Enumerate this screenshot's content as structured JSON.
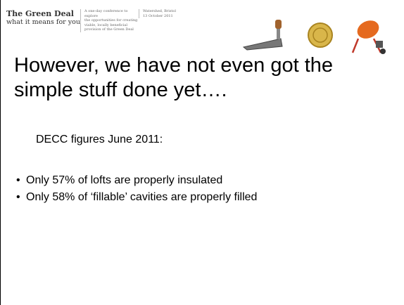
{
  "header": {
    "title": "The Green Deal",
    "tagline": "what it means for you",
    "description": [
      "A one-day conference to explore",
      "the opportunities for creating",
      "viable, locally beneficial",
      "provision of the Green Deal"
    ],
    "venue": [
      "Watershed, Bristol",
      "13 October 2011"
    ]
  },
  "body": {
    "title": "However, we have not even got the simple stuff done yet….",
    "subtitle": "DECC figures June 2011:",
    "bullets": [
      "Only 57% of lofts are properly insulated",
      "Only 58% of ‘fillable’ cavities are properly filled"
    ]
  }
}
